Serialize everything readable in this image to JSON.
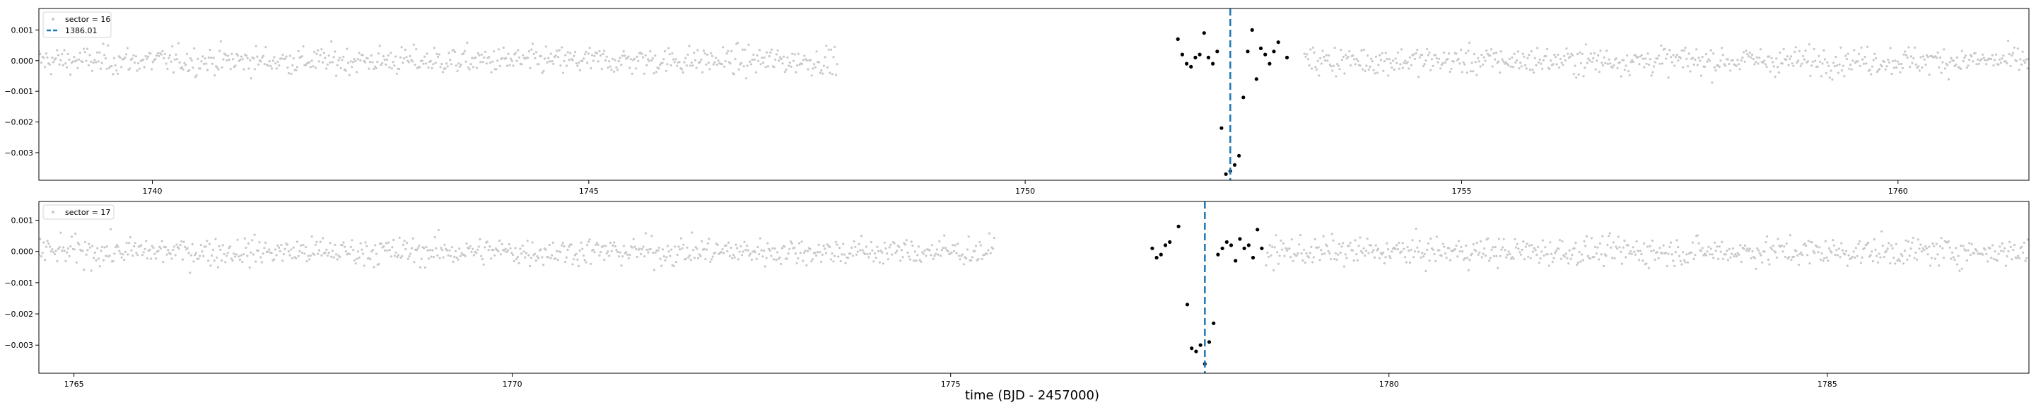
{
  "figure": {
    "xlabel": "time (BJD - 2457000)"
  },
  "chart_data": [
    {
      "type": "scatter",
      "xlim": [
        1738.7,
        1761.5
      ],
      "ylim": [
        -0.0039,
        0.0017
      ],
      "xticks": [
        1740,
        1745,
        1750,
        1755,
        1760
      ],
      "yticks": [
        0.001,
        0.0,
        -0.001,
        -0.002,
        -0.003
      ],
      "ytick_labels": [
        "0.001",
        "0.000",
        "−0.001",
        "−0.002",
        "−0.003"
      ],
      "legend": {
        "placement": "top-left",
        "entries": [
          "sector = 16",
          "1386.01"
        ]
      },
      "vline": {
        "x": 1752.35,
        "label": "1386.01",
        "color": "#1f77b4"
      },
      "baseline_segments": [
        [
          1738.7,
          1747.85
        ],
        [
          1753.2,
          1761.5
        ]
      ],
      "transit_points": [
        [
          1751.75,
          0.0007
        ],
        [
          1751.8,
          0.0002
        ],
        [
          1751.85,
          -0.0001
        ],
        [
          1751.9,
          -0.0002
        ],
        [
          1751.95,
          0.0001
        ],
        [
          1752.0,
          0.0002
        ],
        [
          1752.05,
          0.0009
        ],
        [
          1752.1,
          0.0001
        ],
        [
          1752.15,
          -0.0001
        ],
        [
          1752.2,
          0.0003
        ],
        [
          1752.25,
          -0.0022
        ],
        [
          1752.3,
          -0.0037
        ],
        [
          1752.35,
          -0.0036
        ],
        [
          1752.4,
          -0.0034
        ],
        [
          1752.45,
          -0.0031
        ],
        [
          1752.5,
          -0.0012
        ],
        [
          1752.55,
          0.0003
        ],
        [
          1752.6,
          0.001
        ],
        [
          1752.65,
          -0.0006
        ],
        [
          1752.7,
          0.0004
        ],
        [
          1752.75,
          0.0002
        ],
        [
          1752.8,
          -0.0001
        ],
        [
          1752.85,
          0.0003
        ],
        [
          1752.9,
          0.0006
        ],
        [
          1753.0,
          0.0001
        ]
      ],
      "colors": {
        "baseline": "#c8c8c8",
        "transit": "#000000"
      }
    },
    {
      "type": "scatter",
      "xlim": [
        1764.6,
        1787.3
      ],
      "ylim": [
        -0.0039,
        0.0016
      ],
      "xticks": [
        1765,
        1770,
        1775,
        1780,
        1785
      ],
      "yticks": [
        0.001,
        0.0,
        -0.001,
        -0.002,
        -0.003
      ],
      "ytick_labels": [
        "0.001",
        "0.000",
        "−0.001",
        "−0.002",
        "−0.003"
      ],
      "legend": {
        "placement": "top-left",
        "entries": [
          "sector = 17"
        ]
      },
      "vline": {
        "x": 1777.9,
        "color": "#1f77b4"
      },
      "baseline_segments": [
        [
          1764.6,
          1775.5
        ],
        [
          1778.6,
          1787.3
        ]
      ],
      "transit_points": [
        [
          1777.3,
          0.0001
        ],
        [
          1777.35,
          -0.0002
        ],
        [
          1777.4,
          -0.0001
        ],
        [
          1777.45,
          0.0002
        ],
        [
          1777.5,
          0.0003
        ],
        [
          1777.6,
          0.0008
        ],
        [
          1777.7,
          -0.0017
        ],
        [
          1777.75,
          -0.0031
        ],
        [
          1777.8,
          -0.0032
        ],
        [
          1777.85,
          -0.003
        ],
        [
          1777.9,
          -0.0036
        ],
        [
          1777.95,
          -0.0029
        ],
        [
          1778.0,
          -0.0023
        ],
        [
          1778.05,
          -0.0001
        ],
        [
          1778.1,
          0.0001
        ],
        [
          1778.15,
          0.0003
        ],
        [
          1778.2,
          0.0002
        ],
        [
          1778.25,
          -0.0003
        ],
        [
          1778.3,
          0.0004
        ],
        [
          1778.35,
          0.0001
        ],
        [
          1778.4,
          0.0002
        ],
        [
          1778.45,
          -0.0002
        ],
        [
          1778.5,
          0.0007
        ],
        [
          1778.55,
          0.0001
        ]
      ],
      "colors": {
        "baseline": "#c8c8c8",
        "transit": "#000000"
      }
    }
  ]
}
